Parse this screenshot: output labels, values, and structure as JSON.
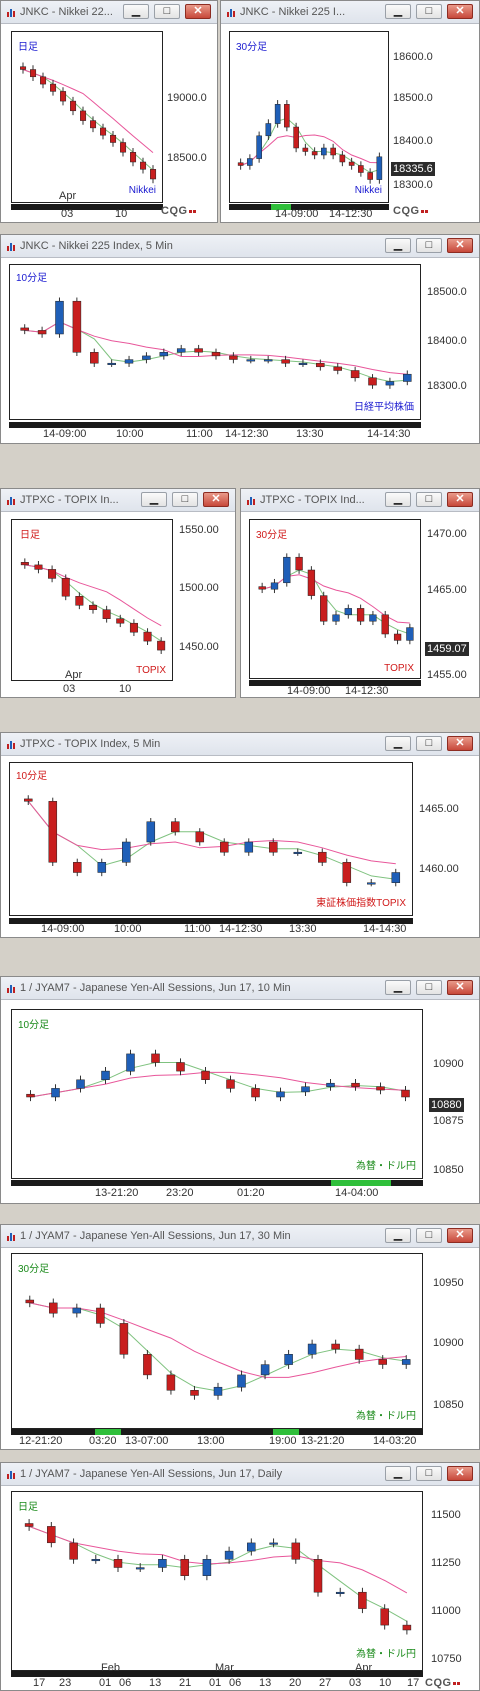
{
  "windows": [
    {
      "id": "w1",
      "title": "JNKC - Nikkei 22...",
      "period": "日足",
      "periodColor": "#1a1ad0",
      "product": "Nikkei",
      "productColor": "#1a1ad0",
      "yTicks": [
        "19000.0",
        "18500.0"
      ],
      "xTicks": [
        "03",
        "10"
      ],
      "xTop": [
        "Apr"
      ],
      "cqg": "CQG"
    },
    {
      "id": "w2",
      "title": "JNKC - Nikkei 225 I...",
      "period": "30分足",
      "periodColor": "#1a1ad0",
      "product": "Nikkei",
      "productColor": "#1a1ad0",
      "yTicks": [
        "18600.0",
        "18500.0",
        "18400.0",
        "18300.0"
      ],
      "lastValue": "18335.6",
      "xTicks": [
        "14-09:00",
        "14-12:30"
      ],
      "cqg": "CQG"
    },
    {
      "id": "w3",
      "title": "JNKC - Nikkei 225 Index, 5 Min",
      "period": "10分足",
      "periodColor": "#1a1ad0",
      "product": "日経平均株価",
      "productColor": "#1a1ad0",
      "yTicks": [
        "18500.0",
        "18400.0",
        "18300.0"
      ],
      "xTicks": [
        "14-09:00",
        "10:00",
        "11:00",
        "14-12:30",
        "13:30",
        "14-14:30"
      ]
    },
    {
      "id": "w4",
      "title": "JTPXC - TOPIX In...",
      "period": "日足",
      "periodColor": "#d01a1a",
      "product": "TOPIX",
      "productColor": "#d01a1a",
      "yTicks": [
        "1550.00",
        "1500.00",
        "1450.00"
      ],
      "xTicks": [
        "03",
        "10"
      ],
      "xTop": [
        "Apr"
      ]
    },
    {
      "id": "w5",
      "title": "JTPXC - TOPIX Ind...",
      "period": "30分足",
      "periodColor": "#d01a1a",
      "product": "TOPIX",
      "productColor": "#d01a1a",
      "yTicks": [
        "1470.00",
        "1465.00",
        "1459.07",
        "1455.00"
      ],
      "lastValue": "1459.07",
      "xTicks": [
        "14-09:00",
        "14-12:30"
      ]
    },
    {
      "id": "w6",
      "title": "JTPXC - TOPIX Index, 5 Min",
      "period": "10分足",
      "periodColor": "#d01a1a",
      "product": "東証株価指数TOPIX",
      "productColor": "#d01a1a",
      "yTicks": [
        "1465.00",
        "1460.00"
      ],
      "xTicks": [
        "14-09:00",
        "10:00",
        "11:00",
        "14-12:30",
        "13:30",
        "14-14:30"
      ]
    },
    {
      "id": "w7",
      "title": "1 / JYAM7 - Japanese Yen-All Sessions, Jun 17, 10 Min",
      "period": "10分足",
      "periodColor": "#1a8a1a",
      "product": "為替・ドル円",
      "productColor": "#1a8a1a",
      "yTicks": [
        "10900",
        "10875",
        "10850"
      ],
      "lastValue": "10880",
      "xTicks": [
        "13-21:20",
        "23:20",
        "01:20",
        "14-04:00"
      ]
    },
    {
      "id": "w8",
      "title": "1 / JYAM7 - Japanese Yen-All Sessions, Jun 17, 30 Min",
      "period": "30分足",
      "periodColor": "#1a8a1a",
      "product": "為替・ドル円",
      "productColor": "#1a8a1a",
      "yTicks": [
        "10950",
        "10900",
        "10850"
      ],
      "xTicks": [
        "12-21:20",
        "03:20",
        "13-07:00",
        "13:00",
        "19:00",
        "13-21:20",
        "14-03:20"
      ]
    },
    {
      "id": "w9",
      "title": "1 / JYAM7 - Japanese Yen-All Sessions, Jun 17, Daily",
      "period": "日足",
      "periodColor": "#1a8a1a",
      "product": "為替・ドル円",
      "productColor": "#1a8a1a",
      "yTicks": [
        "11500",
        "11250",
        "11000",
        "10750"
      ],
      "xTicks": [
        "17",
        "23",
        "01",
        "06",
        "13",
        "21",
        "01",
        "06",
        "13",
        "20",
        "27",
        "03",
        "10",
        "17"
      ],
      "xTop": [
        "Feb",
        "Mar",
        "Apr"
      ],
      "cqg": "CQG"
    }
  ],
  "button_glyphs": {
    "minimize": "▁",
    "maximize": "□",
    "close": "✕"
  },
  "colors": {
    "up": "#1f5fb8",
    "down": "#c81e1e",
    "ma_fast": "#7fc27f",
    "ma_slow": "#e8569a"
  },
  "chart_data": [
    {
      "type": "line",
      "title": "",
      "panel": "w1",
      "y": [
        19240,
        19180,
        19120,
        19060,
        18980,
        18900,
        18820,
        18760,
        18700,
        18640,
        18560,
        18480,
        18420,
        18340
      ],
      "ylim": [
        18250,
        19400
      ],
      "series_note": "daily candles, Nikkei"
    },
    {
      "type": "line",
      "panel": "w2",
      "y": [
        18310,
        18330,
        18395,
        18430,
        18485,
        18420,
        18360,
        18350,
        18340,
        18360,
        18340,
        18320,
        18310,
        18290,
        18270,
        18335
      ],
      "ylim": [
        18240,
        18640
      ]
    },
    {
      "type": "line",
      "panel": "w3",
      "y": [
        18450,
        18440,
        18530,
        18390,
        18360,
        18360,
        18370,
        18380,
        18390,
        18400,
        18390,
        18380,
        18370,
        18370,
        18370,
        18360,
        18360,
        18350,
        18340,
        18320,
        18300,
        18310,
        18330
      ],
      "ylim": [
        18240,
        18580
      ]
    },
    {
      "type": "line",
      "panel": "w4",
      "y": [
        1545,
        1540,
        1530,
        1510,
        1500,
        1495,
        1485,
        1480,
        1470,
        1460,
        1450
      ],
      "ylim": [
        1430,
        1575
      ]
    },
    {
      "type": "line",
      "panel": "w5",
      "y": [
        1465,
        1466,
        1470,
        1468,
        1464,
        1460,
        1461,
        1462,
        1460,
        1461,
        1458,
        1457,
        1459
      ],
      "ylim": [
        1453,
        1473
      ]
    },
    {
      "type": "line",
      "panel": "w6",
      "y": [
        1466,
        1460,
        1459,
        1460,
        1462,
        1464,
        1463,
        1462,
        1461,
        1462,
        1461,
        1461,
        1460,
        1458,
        1458,
        1459
      ],
      "ylim": [
        1456,
        1468
      ]
    },
    {
      "type": "line",
      "panel": "w7",
      "y": [
        10880,
        10885,
        10890,
        10895,
        10905,
        10900,
        10895,
        10890,
        10885,
        10880,
        10883,
        10886,
        10888,
        10886,
        10884,
        10880
      ],
      "ylim": [
        10840,
        10920
      ]
    },
    {
      "type": "line",
      "panel": "w8",
      "y": [
        10940,
        10930,
        10935,
        10920,
        10890,
        10870,
        10855,
        10850,
        10858,
        10870,
        10880,
        10890,
        10900,
        10895,
        10885,
        10880,
        10885
      ],
      "ylim": [
        10830,
        10970
      ]
    },
    {
      "type": "line",
      "panel": "w9",
      "y": [
        11500,
        11400,
        11300,
        11300,
        11250,
        11250,
        11300,
        11200,
        11300,
        11350,
        11400,
        11400,
        11300,
        11100,
        11100,
        11000,
        10900,
        10870
      ],
      "ylim": [
        10700,
        11600
      ]
    }
  ]
}
